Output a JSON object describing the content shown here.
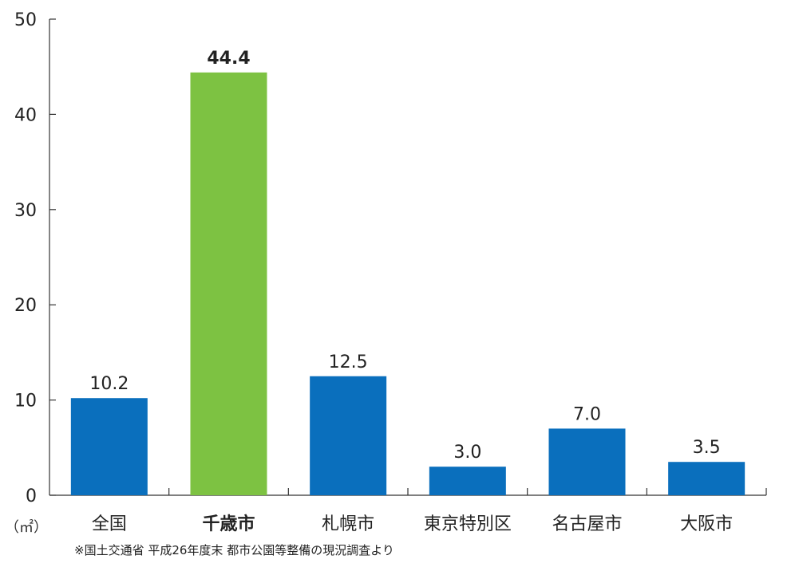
{
  "chart_data": {
    "type": "bar",
    "categories": [
      "全国",
      "千歳市",
      "札幌市",
      "東京特別区",
      "名古屋市",
      "大阪市"
    ],
    "values": [
      10.2,
      44.4,
      12.5,
      3.0,
      7.0,
      3.5
    ],
    "value_labels": [
      "10.2",
      "44.4",
      "12.5",
      "3.0",
      "7.0",
      "3.5"
    ],
    "highlight_index": 1,
    "title": "",
    "xlabel": "",
    "ylabel": "",
    "unit": "（㎡）",
    "ylim": [
      0,
      50
    ],
    "yticks": [
      "0",
      "10",
      "20",
      "30",
      "40",
      "50"
    ],
    "grid": false,
    "legend": "none",
    "colors": {
      "bar": "#0a6fbd",
      "highlight_bar": "#7dc242",
      "highlight_text": "#f05a28",
      "axis": "#333333",
      "text": "#222222"
    }
  },
  "source_note": "※国土交通省 平成26年度末 都市公園等整備の現況調査より"
}
